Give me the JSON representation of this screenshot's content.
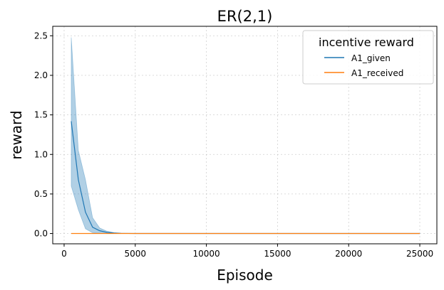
{
  "chart_data": {
    "type": "line",
    "title": "ER(2,1)",
    "xlabel": "Episode",
    "ylabel": "reward",
    "xlim": [
      -800,
      26200
    ],
    "ylim": [
      -0.13,
      2.62
    ],
    "xticks": [
      0,
      5000,
      10000,
      15000,
      20000,
      25000
    ],
    "yticks": [
      0.0,
      0.5,
      1.0,
      1.5,
      2.0,
      2.5
    ],
    "xtick_labels": [
      "0",
      "5000",
      "10000",
      "15000",
      "20000",
      "25000"
    ],
    "ytick_labels": [
      "0.0",
      "0.5",
      "1.0",
      "1.5",
      "2.0",
      "2.5"
    ],
    "grid": true,
    "legend": {
      "title": "incentive reward",
      "placement": "top-right"
    },
    "series": [
      {
        "name": "A1_given",
        "color": "#1f77b4",
        "x": [
          500,
          1000,
          1500,
          2000,
          2500,
          3000,
          3500,
          4000,
          5000,
          7500,
          10000,
          15000,
          20000,
          25000
        ],
        "y": [
          1.42,
          0.68,
          0.27,
          0.08,
          0.035,
          0.015,
          0.006,
          0.002,
          0.0,
          0.0,
          0.0,
          0.0,
          0.0,
          0.0
        ],
        "upper": [
          2.48,
          1.05,
          0.68,
          0.2,
          0.07,
          0.03,
          0.012,
          0.005,
          0.0,
          0.0,
          0.0,
          0.0,
          0.0,
          0.0
        ],
        "lower": [
          0.6,
          0.3,
          0.06,
          0.01,
          0.005,
          0.002,
          0.001,
          0.0,
          0.0,
          0.0,
          0.0,
          0.0,
          0.0,
          0.0
        ]
      },
      {
        "name": "A1_received",
        "color": "#ff7f0e",
        "x": [
          500,
          1000,
          2000,
          5000,
          10000,
          15000,
          20000,
          25000
        ],
        "y": [
          0.0,
          0.0,
          0.0,
          0.0,
          0.0,
          0.0,
          0.0,
          0.0
        ]
      }
    ]
  }
}
